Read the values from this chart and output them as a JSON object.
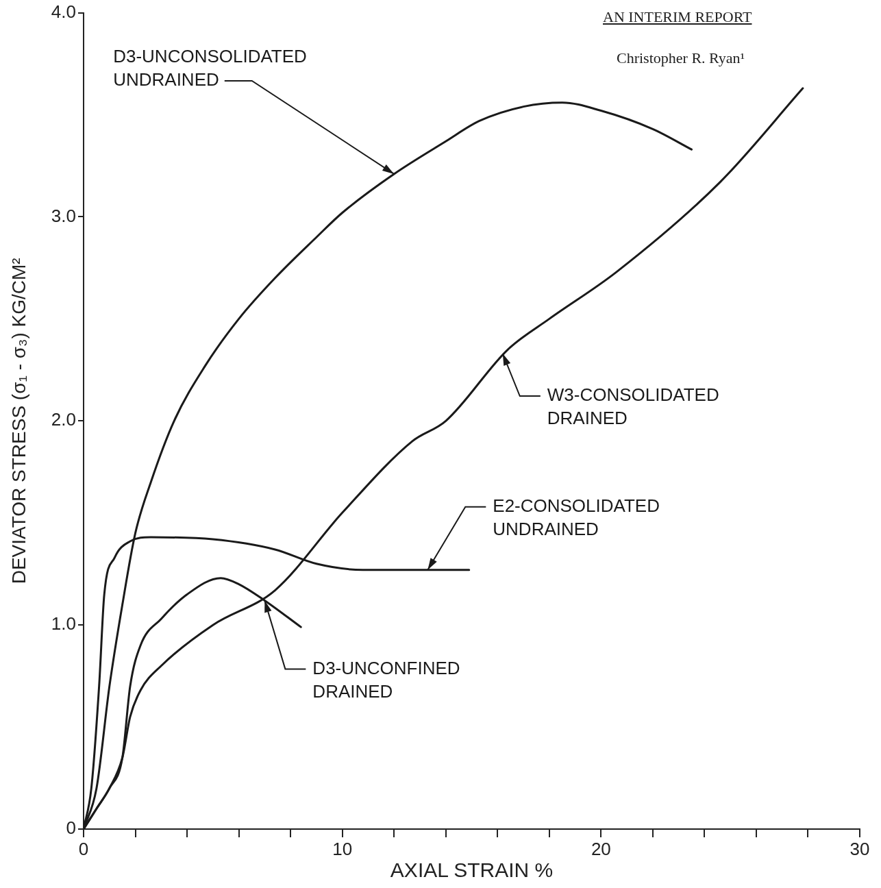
{
  "chart_data": {
    "type": "line",
    "xlabel": "AXIAL STRAIN %",
    "ylabel": "DEVIATOR STRESS (σ₁ - σ₃) KG/CM²",
    "xlim": [
      0,
      30
    ],
    "ylim": [
      0,
      4.0
    ],
    "xticks": [
      0,
      {
        "value": 2,
        "label": null
      },
      {
        "value": 4,
        "label": null
      },
      {
        "value": 6,
        "label": null
      },
      {
        "value": 8,
        "label": null
      },
      10,
      {
        "value": 12,
        "label": null
      },
      {
        "value": 14,
        "label": null
      },
      {
        "value": 16,
        "label": null
      },
      {
        "value": 18,
        "label": null
      },
      20,
      {
        "value": 22,
        "label": null
      },
      {
        "value": 24,
        "label": null
      },
      {
        "value": 26,
        "label": null
      },
      {
        "value": 28,
        "label": null
      },
      30
    ],
    "yticks": [
      0,
      {
        "value": 1,
        "label": "1.0"
      },
      {
        "value": 2,
        "label": "2.0"
      },
      {
        "value": 3,
        "label": "3.0"
      },
      {
        "value": 4,
        "label": "4.0"
      }
    ],
    "grid": false,
    "marker": "none",
    "line_style": "solid",
    "series": [
      {
        "color": "#1a1a1a",
        "x": [
          0,
          0.5,
          1,
          1.5,
          2,
          2.6,
          3.5,
          4.7,
          6,
          7.4,
          9,
          10,
          12,
          14,
          15.3,
          17,
          18.5,
          20,
          22,
          23.5
        ],
        "values": [
          0,
          0.2,
          0.7,
          1.1,
          1.45,
          1.7,
          2.0,
          2.27,
          2.5,
          2.7,
          2.9,
          3.02,
          3.21,
          3.37,
          3.47,
          3.54,
          3.56,
          3.52,
          3.43,
          3.33
        ]
      },
      {
        "color": "#1a1a1a",
        "x": [
          0,
          0.5,
          1,
          1.5,
          1.8,
          2.2,
          3,
          5,
          7.4,
          10,
          12.7,
          14,
          16.4,
          18,
          20.6,
          24.6,
          27.8
        ],
        "values": [
          0,
          0.1,
          0.2,
          0.35,
          0.55,
          0.68,
          0.8,
          1.0,
          1.17,
          1.55,
          1.9,
          2.0,
          2.35,
          2.5,
          2.73,
          3.17,
          3.63
        ]
      },
      {
        "color": "#1a1a1a",
        "x": [
          0,
          0.3,
          0.6,
          0.8,
          1.2,
          1.8,
          2.6,
          5,
          7.4,
          9,
          10.8,
          13,
          14.9
        ],
        "values": [
          0,
          0.2,
          0.7,
          1.15,
          1.33,
          1.41,
          1.43,
          1.42,
          1.37,
          1.3,
          1.27,
          1.27,
          1.27
        ]
      },
      {
        "color": "#1a1a1a",
        "x": [
          0,
          0.5,
          1,
          1.5,
          1.8,
          2.2,
          3,
          4,
          5.3,
          6,
          7,
          8.4
        ],
        "values": [
          0,
          0.1,
          0.2,
          0.35,
          0.7,
          0.9,
          1.03,
          1.15,
          1.23,
          1.2,
          1.12,
          0.99
        ]
      }
    ],
    "annotations": [
      {
        "text": "D3-UNCONSOLIDATED\nUNDRAINED",
        "x": 12,
        "y": 3.21
      },
      {
        "text": "W3-CONSOLIDATED\nDRAINED",
        "x": 16.2,
        "y": 2.33
      },
      {
        "text": "E2-CONSOLIDATED\nUNDRAINED",
        "x": 13.3,
        "y": 1.27
      },
      {
        "text": "D3-UNCONFINED\nDRAINED",
        "x": 7,
        "y": 1.12
      },
      "AN INTERIM REPORT",
      "Christopher R. Ryan¹"
    ]
  }
}
